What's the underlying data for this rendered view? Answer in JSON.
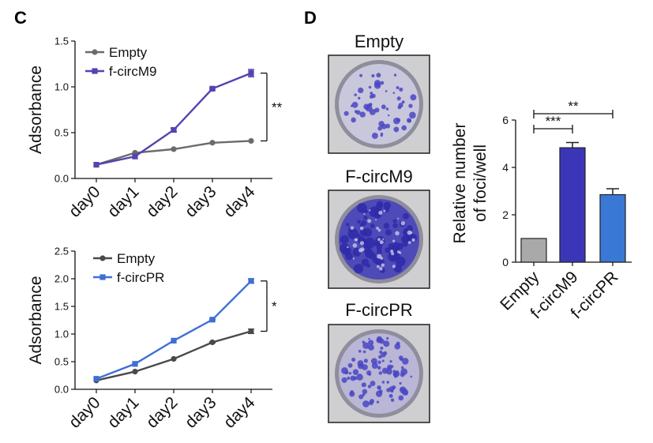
{
  "panels": {
    "c_label": "C",
    "d_label": "D"
  },
  "colors": {
    "empty_line": "#6b6b6b",
    "circm9_line": "#5543b0",
    "circpr_line": "#3f6fd6",
    "bar_empty": "#a9a9a9",
    "bar_circm9": "#3b36b8",
    "bar_circpr": "#3a78d6",
    "dish_rim": "#9b9ba8",
    "dish_bg": "#ccccd8",
    "stain": "#4a46c4",
    "frame": "#2b2b2b"
  },
  "chart_data": [
    {
      "type": "line",
      "ylabel": "Adsorbance",
      "ylim": [
        0,
        1.5
      ],
      "yticks": [
        "0.0",
        "0.5",
        "1.0",
        "1.5"
      ],
      "categories": [
        "day0",
        "day1",
        "day2",
        "day3",
        "day4"
      ],
      "legend": "top-left",
      "series": [
        {
          "name": "Empty",
          "values": [
            0.15,
            0.28,
            0.32,
            0.39,
            0.41
          ]
        },
        {
          "name": "f-circM9",
          "values": [
            0.15,
            0.24,
            0.53,
            0.98,
            1.15
          ],
          "errors": [
            0,
            0,
            0.02,
            0.01,
            0.04
          ]
        }
      ],
      "significance": "**"
    },
    {
      "type": "line",
      "ylabel": "Adsorbance",
      "ylim": [
        0,
        2.5
      ],
      "yticks": [
        "0.0",
        "0.5",
        "1.0",
        "1.5",
        "2.0",
        "2.5"
      ],
      "categories": [
        "day0",
        "day1",
        "day2",
        "day3",
        "day4"
      ],
      "legend": "top-left",
      "series": [
        {
          "name": "Empty",
          "values": [
            0.16,
            0.32,
            0.55,
            0.85,
            1.05
          ],
          "errors": [
            0,
            0,
            0,
            0.01,
            0.04
          ]
        },
        {
          "name": "f-circPR",
          "values": [
            0.19,
            0.46,
            0.88,
            1.26,
            1.96
          ],
          "errors": [
            0,
            0,
            0,
            0.01,
            0.04
          ]
        }
      ],
      "significance": "*"
    },
    {
      "type": "bar",
      "ylabel": "Relative number of foci/well",
      "ylabel_lines": [
        "Relative number",
        "of foci/well"
      ],
      "ylim": [
        0,
        6
      ],
      "yticks": [
        "0",
        "2",
        "4",
        "6"
      ],
      "categories": [
        "Empty",
        "f-circM9",
        "f-circPR"
      ],
      "values": [
        1.0,
        4.83,
        2.85
      ],
      "errors": [
        0,
        0.22,
        0.25
      ],
      "significance": [
        {
          "label": "***",
          "between": [
            "Empty",
            "f-circM9"
          ]
        },
        {
          "label": "**",
          "between": [
            "Empty",
            "f-circPR"
          ]
        }
      ]
    }
  ],
  "dishes": [
    {
      "title": "Empty",
      "density": "sparse"
    },
    {
      "title": "F-circM9",
      "density": "dense"
    },
    {
      "title": "F-circPR",
      "density": "medium"
    }
  ]
}
